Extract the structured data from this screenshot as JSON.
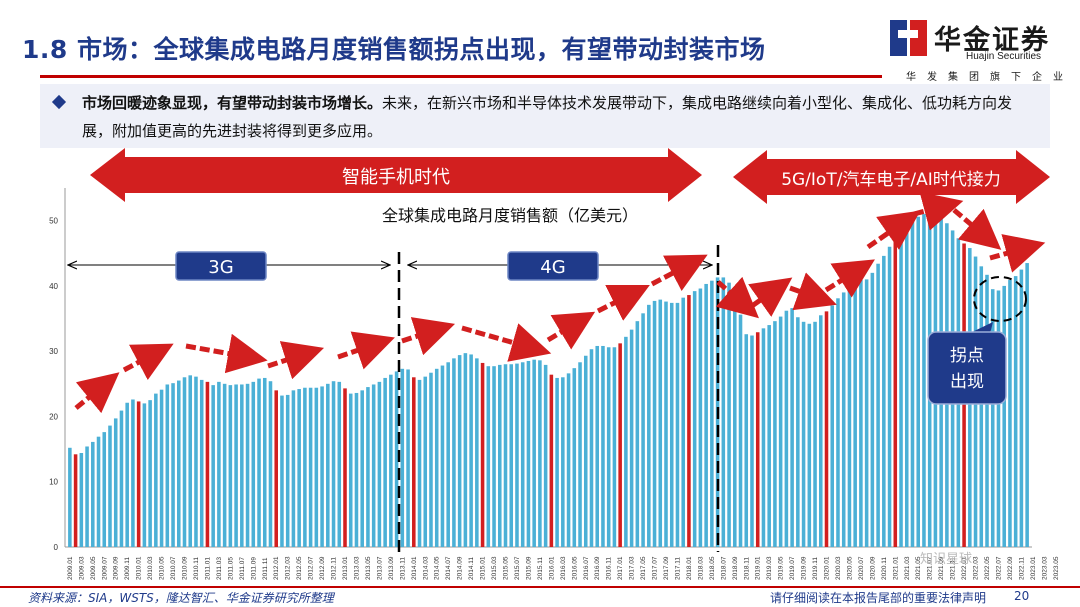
{
  "header": {
    "title": "1.8 市场：全球集成电路月度销售额拐点出现，有望带动封装市场",
    "logo_cn": "华金证券",
    "logo_en": "Huajin Securities",
    "logo_sub": "华发集团旗下企业"
  },
  "summary": {
    "lead": "市场回暖迹象显现，有望带动封装市场增长。",
    "body": "未来，在新兴市场和半导体技术发展带动下，集成电路继续向着小型化、集成化、低功耗方向发展，附加值更高的先进封装将得到更多应用。"
  },
  "banners": {
    "smartphone": "智能手机时代",
    "next": "5G/IoT/汽车电子/AI时代接力"
  },
  "phases": {
    "g3": "3G",
    "g4": "4G"
  },
  "callout": {
    "line1": "拐点",
    "line2": "出现"
  },
  "footer": {
    "source": "资料来源：SIA，WSTS，隆达智汇、华金证券研究所整理",
    "disclaimer": "请仔细阅读在本报告尾部的重要法律声明",
    "page": "20"
  },
  "watermark": "知识星球",
  "colors": {
    "brand_blue": "#1f3a8a",
    "bar": "#4bb0d6",
    "highlight_bar": "#d21f1f",
    "arrow_red": "#d21f1f"
  },
  "chart_data": {
    "type": "bar",
    "title": "全球集成电路月度销售额（亿美元）",
    "ylim": [
      0,
      55
    ],
    "yticks": [
      0,
      10,
      20,
      30,
      40,
      50
    ],
    "grid": false,
    "series": [
      {
        "values": [
          15.2,
          14.2,
          14.4,
          15.4,
          16.1,
          16.9,
          17.6,
          18.6,
          19.7,
          20.9,
          22.1,
          22.6,
          22.3,
          22.0,
          22.5,
          23.5,
          24.1,
          24.9,
          25.1,
          25.5,
          26.0,
          26.3,
          26.1,
          25.6,
          25.3,
          24.8,
          25.3,
          25.0,
          24.8,
          24.9,
          24.9,
          25.0,
          25.3,
          25.8,
          25.9,
          25.4,
          24.0,
          23.2,
          23.3,
          24.0,
          24.2,
          24.4,
          24.4,
          24.4,
          24.6,
          25.0,
          25.4,
          25.3,
          24.3,
          23.5,
          23.6,
          24.0,
          24.5,
          24.9,
          25.3,
          25.9,
          26.4,
          26.9,
          27.3,
          27.2,
          26.0,
          25.6,
          26.1,
          26.7,
          27.3,
          27.8,
          28.3,
          28.9,
          29.4,
          29.7,
          29.5,
          28.9,
          28.2,
          27.7,
          27.7,
          27.9,
          28.0,
          28.0,
          28.1,
          28.3,
          28.5,
          28.7,
          28.6,
          27.9,
          26.4,
          25.9,
          26.0,
          26.6,
          27.4,
          28.3,
          29.3,
          30.3,
          30.8,
          30.8,
          30.6,
          30.6,
          31.2,
          32.2,
          33.3,
          34.6,
          35.8,
          37.1,
          37.7,
          37.9,
          37.6,
          37.4,
          37.4,
          38.2,
          38.6,
          39.2,
          39.6,
          40.3,
          40.8,
          41.3,
          41.3,
          40.5,
          38.5,
          35.6,
          32.6,
          32.4,
          32.9,
          33.5,
          34.0,
          34.6,
          35.3,
          36.2,
          36.6,
          35.2,
          34.5,
          34.2,
          34.5,
          35.5,
          36.1,
          37.0,
          38.1,
          39.0,
          39.6,
          40.4,
          40.9,
          41.0,
          42.0,
          43.4,
          44.6,
          46.0,
          47.3,
          48.5,
          49.6,
          50.1,
          50.6,
          51.0,
          51.2,
          50.9,
          50.3,
          49.6,
          48.5,
          47.3,
          46.5,
          45.8,
          44.5,
          43.0,
          41.7,
          39.5,
          39.3,
          40.0,
          40.9,
          41.5,
          42.5,
          43.5
        ]
      }
    ],
    "highlight_index": [
      1,
      12,
      24,
      36,
      48,
      60,
      72,
      84,
      96,
      108,
      120,
      132,
      144,
      156
    ],
    "x_tick_labels": [
      "2009.01",
      "2009.03",
      "2009.05",
      "2009.07",
      "2009.09",
      "2009.11",
      "2010.01",
      "2010.03",
      "2010.05",
      "2010.07",
      "2010.09",
      "2010.11",
      "2011.01",
      "2011.03",
      "2011.05",
      "2011.07",
      "2011.09",
      "2011.11",
      "2012.01",
      "2012.03",
      "2012.05",
      "2012.07",
      "2012.09",
      "2012.11",
      "2013.01",
      "2013.03",
      "2013.05",
      "2013.07",
      "2013.09",
      "2013.11",
      "2014.01",
      "2014.03",
      "2014.05",
      "2014.07",
      "2014.09",
      "2014.11",
      "2015.01",
      "2015.03",
      "2015.05",
      "2015.07",
      "2015.09",
      "2015.11",
      "2016.01",
      "2016.03",
      "2016.05",
      "2016.07",
      "2016.09",
      "2016.11",
      "2017.01",
      "2017.03",
      "2017.05",
      "2017.07",
      "2017.09",
      "2017.11",
      "2018.01",
      "2018.03",
      "2018.05",
      "2018.07",
      "2018.09",
      "2018.11",
      "2019.01",
      "2019.03",
      "2019.05",
      "2019.07",
      "2019.09",
      "2019.11",
      "2020.01",
      "2020.03",
      "2020.05",
      "2020.07",
      "2020.09",
      "2020.11",
      "2021.01",
      "2021.03",
      "2021.05",
      "2021.07",
      "2021.09",
      "2021.11",
      "2022.01",
      "2022.03",
      "2022.05",
      "2022.07",
      "2022.09",
      "2022.11",
      "2023.01",
      "2023.03",
      "2023.05"
    ]
  }
}
